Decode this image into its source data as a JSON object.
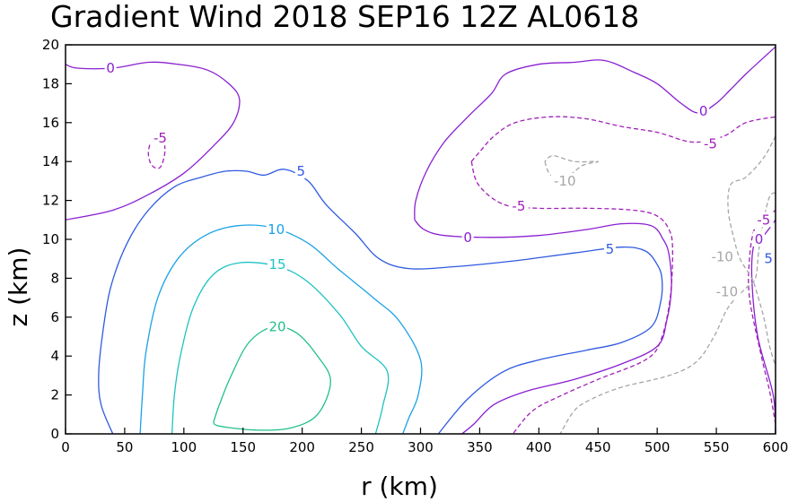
{
  "chart_data": {
    "type": "contour",
    "title": "Gradient Wind 2018 SEP16 12Z  AL0618",
    "xlabel": "r (km)",
    "ylabel": "z (km)",
    "xlim": [
      0,
      600
    ],
    "ylim": [
      0,
      20
    ],
    "xticks": [
      "0",
      "50",
      "100",
      "150",
      "200",
      "250",
      "300",
      "350",
      "400",
      "450",
      "500",
      "550",
      "600"
    ],
    "yticks": [
      "0",
      "2",
      "4",
      "6",
      "8",
      "10",
      "12",
      "14",
      "16",
      "18",
      "20"
    ],
    "grid": false,
    "contours": [
      {
        "level": 20,
        "color": "#21c08b",
        "dash": false,
        "points": [
          [
            125,
            0.6
          ],
          [
            130,
            1.5
          ],
          [
            140,
            3
          ],
          [
            155,
            4.7
          ],
          [
            175,
            5.5
          ],
          [
            195,
            5.2
          ],
          [
            213,
            4
          ],
          [
            224,
            2.7
          ],
          [
            213,
            1
          ],
          [
            190,
            0.3
          ],
          [
            160,
            0.2
          ],
          [
            130,
            0.4
          ],
          [
            125,
            0.6
          ]
        ]
      },
      {
        "level": 15,
        "color": "#1fc2c2",
        "dash": false,
        "points": [
          [
            90,
            0
          ],
          [
            92,
            2
          ],
          [
            97,
            4
          ],
          [
            108,
            6.5
          ],
          [
            125,
            8.2
          ],
          [
            148,
            8.8
          ],
          [
            180,
            8.6
          ],
          [
            205,
            7.8
          ],
          [
            232,
            6.1
          ],
          [
            250,
            4.5
          ],
          [
            272,
            3.2
          ],
          [
            268,
            1.4
          ],
          [
            262,
            0
          ]
        ]
      },
      {
        "level": 10,
        "color": "#1aa2e6",
        "dash": false,
        "points": [
          [
            63,
            0
          ],
          [
            65,
            2
          ],
          [
            68,
            4.2
          ],
          [
            78,
            7
          ],
          [
            95,
            9
          ],
          [
            118,
            10.2
          ],
          [
            145,
            10.7
          ],
          [
            175,
            10.6
          ],
          [
            205,
            9.8
          ],
          [
            230,
            8.5
          ],
          [
            260,
            7
          ],
          [
            282,
            5.8
          ],
          [
            300,
            3.8
          ],
          [
            298,
            2
          ],
          [
            290,
            0.8
          ],
          [
            285,
            0
          ]
        ]
      },
      {
        "level": 5,
        "color": "#2f5ae0",
        "dash": false,
        "points": [
          [
            40,
            0
          ],
          [
            30,
            1.5
          ],
          [
            28,
            3
          ],
          [
            31,
            5
          ],
          [
            38,
            7.5
          ],
          [
            52,
            9.8
          ],
          [
            70,
            11.5
          ],
          [
            92,
            12.7
          ],
          [
            115,
            13.2
          ],
          [
            135,
            13.5
          ],
          [
            153,
            13.5
          ],
          [
            168,
            13.3
          ],
          [
            185,
            13.6
          ],
          [
            205,
            13
          ],
          [
            220,
            11.8
          ],
          [
            245,
            10.3
          ],
          [
            265,
            9
          ],
          [
            290,
            8.5
          ],
          [
            330,
            8.6
          ],
          [
            380,
            8.9
          ],
          [
            430,
            9.3
          ],
          [
            470,
            9.6
          ],
          [
            490,
            9.4
          ],
          [
            500,
            8.7
          ],
          [
            504,
            8
          ],
          [
            503,
            6.8
          ],
          [
            495,
            5.5
          ],
          [
            470,
            4.7
          ],
          [
            440,
            4.3
          ],
          [
            400,
            3.8
          ],
          [
            370,
            3.2
          ],
          [
            340,
            1.8
          ],
          [
            315,
            0
          ]
        ]
      },
      {
        "level": 0,
        "color": "#8a1fd1",
        "dash": false,
        "points": [
          [
            0,
            11
          ],
          [
            40,
            11.5
          ],
          [
            70,
            12.3
          ],
          [
            100,
            13.4
          ],
          [
            125,
            14.8
          ],
          [
            142,
            16
          ],
          [
            147,
            17.2
          ],
          [
            138,
            18
          ],
          [
            120,
            18.7
          ],
          [
            95,
            19
          ],
          [
            70,
            19.1
          ],
          [
            40,
            18.8
          ],
          [
            10,
            18.8
          ],
          [
            0,
            19
          ]
        ]
      },
      {
        "level": 0,
        "color": "#8a1fd1",
        "dash": false,
        "points": [
          [
            295,
            11
          ],
          [
            296,
            12
          ],
          [
            305,
            13.5
          ],
          [
            320,
            15
          ],
          [
            340,
            16.3
          ],
          [
            360,
            17.5
          ],
          [
            372,
            18.5
          ],
          [
            400,
            19
          ],
          [
            430,
            19.1
          ],
          [
            455,
            19.2
          ],
          [
            480,
            18.6
          ],
          [
            500,
            18
          ],
          [
            520,
            17
          ],
          [
            535,
            16.5
          ],
          [
            550,
            17
          ],
          [
            562,
            17.7
          ],
          [
            575,
            18.5
          ],
          [
            600,
            19.9
          ]
        ]
      },
      {
        "level": 0,
        "color": "#8a1fd1",
        "dash": false,
        "points": [
          [
            295,
            11
          ],
          [
            303,
            10.5
          ],
          [
            320,
            10.2
          ],
          [
            360,
            10.1
          ],
          [
            400,
            10.2
          ],
          [
            440,
            10.5
          ],
          [
            470,
            10.8
          ],
          [
            495,
            10.7
          ],
          [
            505,
            10
          ],
          [
            510,
            9.2
          ],
          [
            512,
            7.5
          ],
          [
            508,
            5.8
          ],
          [
            500,
            4.5
          ],
          [
            470,
            3.6
          ],
          [
            430,
            2.8
          ],
          [
            390,
            2.2
          ],
          [
            362,
            1.5
          ],
          [
            345,
            0.5
          ],
          [
            335,
            0
          ]
        ]
      },
      {
        "level": 0,
        "color": "#8a1fd1",
        "dash": false,
        "points": [
          [
            600,
            0
          ],
          [
            598,
            2
          ],
          [
            585,
            5
          ],
          [
            580,
            8
          ],
          [
            582,
            9.8
          ],
          [
            590,
            10.2
          ],
          [
            600,
            11
          ]
        ]
      },
      {
        "level": -5,
        "color": "#a01fb8",
        "dash": true,
        "points": [
          [
            343,
            14
          ],
          [
            350,
            14.5
          ],
          [
            362,
            15.3
          ],
          [
            380,
            16
          ],
          [
            410,
            16.3
          ],
          [
            440,
            16.2
          ],
          [
            470,
            15.8
          ],
          [
            500,
            15.5
          ],
          [
            530,
            15
          ],
          [
            556,
            15.3
          ],
          [
            575,
            16
          ],
          [
            600,
            16.3
          ]
        ]
      },
      {
        "level": -5,
        "color": "#a01fb8",
        "dash": true,
        "points": [
          [
            343,
            14
          ],
          [
            349,
            12.8
          ],
          [
            370,
            11.8
          ],
          [
            400,
            11.6
          ],
          [
            440,
            11.6
          ],
          [
            480,
            11.5
          ],
          [
            500,
            11.2
          ],
          [
            510,
            10.5
          ],
          [
            513,
            9.5
          ],
          [
            511,
            7
          ],
          [
            503,
            4.8
          ],
          [
            490,
            3.8
          ],
          [
            450,
            2.8
          ],
          [
            420,
            2
          ],
          [
            395,
            1.2
          ],
          [
            378,
            0
          ]
        ]
      },
      {
        "level": -5,
        "color": "#a01fb8",
        "dash": true,
        "points": [
          [
            600,
            0.5
          ],
          [
            595,
            2.2
          ],
          [
            588,
            4
          ],
          [
            578,
            7
          ],
          [
            578,
            9
          ],
          [
            582,
            10.5
          ],
          [
            590,
            11
          ],
          [
            600,
            11.5
          ]
        ]
      },
      {
        "level": -5,
        "color": "#a01fb8",
        "dash": true,
        "points": [
          [
            77,
            15.5
          ],
          [
            72,
            15
          ],
          [
            70,
            14.4
          ],
          [
            73,
            13.8
          ],
          [
            80,
            13.7
          ],
          [
            84,
            14.5
          ],
          [
            82,
            15.3
          ],
          [
            77,
            15.5
          ]
        ]
      },
      {
        "level": -10,
        "color": "#a6a6a6",
        "dash": true,
        "points": [
          [
            405,
            14
          ],
          [
            410,
            13.3
          ],
          [
            423,
            13.2
          ],
          [
            437,
            13.8
          ],
          [
            450,
            14
          ],
          [
            430,
            14
          ],
          [
            412,
            14.3
          ],
          [
            405,
            14
          ]
        ]
      },
      {
        "level": -10,
        "color": "#a6a6a6",
        "dash": true,
        "points": [
          [
            600,
            15.3
          ],
          [
            590,
            14.2
          ],
          [
            575,
            13.2
          ],
          [
            562,
            12.8
          ],
          [
            560,
            11.5
          ],
          [
            565,
            10
          ],
          [
            570,
            9
          ],
          [
            580,
            8
          ],
          [
            583,
            7.5
          ],
          [
            590,
            6
          ],
          [
            595,
            4.5
          ],
          [
            600,
            3.5
          ]
        ]
      },
      {
        "level": -10,
        "color": "#a6a6a6",
        "dash": true,
        "points": [
          [
            600,
            12.4
          ],
          [
            595,
            12.2
          ],
          [
            590,
            11
          ],
          [
            586,
            9.5
          ],
          [
            583,
            8
          ],
          [
            575,
            7.5
          ],
          [
            560,
            6.5
          ],
          [
            548,
            5
          ],
          [
            533,
            3.7
          ],
          [
            510,
            3
          ],
          [
            470,
            2.4
          ],
          [
            445,
            1.8
          ],
          [
            430,
            1.2
          ],
          [
            418,
            0
          ]
        ]
      }
    ],
    "contour_labels": [
      {
        "text": "0",
        "x": 38,
        "y": 18.8,
        "color": "#8a1fd1"
      },
      {
        "text": "-5",
        "x": 80,
        "y": 15.2,
        "color": "#a01fb8"
      },
      {
        "text": "5",
        "x": 199,
        "y": 13.5,
        "color": "#2f5ae0"
      },
      {
        "text": "10",
        "x": 178,
        "y": 10.5,
        "color": "#1aa2e6"
      },
      {
        "text": "15",
        "x": 179,
        "y": 8.7,
        "color": "#1fc2c2"
      },
      {
        "text": "20",
        "x": 179,
        "y": 5.5,
        "color": "#21c08b"
      },
      {
        "text": "0",
        "x": 340,
        "y": 10.1,
        "color": "#8a1fd1"
      },
      {
        "text": "-5",
        "x": 383,
        "y": 11.7,
        "color": "#a01fb8"
      },
      {
        "text": "-10",
        "x": 422,
        "y": 13,
        "color": "#a6a6a6"
      },
      {
        "text": "5",
        "x": 460,
        "y": 9.5,
        "color": "#2f5ae0"
      },
      {
        "text": "0",
        "x": 539,
        "y": 16.6,
        "color": "#8a1fd1"
      },
      {
        "text": "-5",
        "x": 545,
        "y": 14.9,
        "color": "#a01fb8"
      },
      {
        "text": "-10",
        "x": 555,
        "y": 9.1,
        "color": "#a6a6a6"
      },
      {
        "text": "-10",
        "x": 559,
        "y": 7.3,
        "color": "#a6a6a6"
      },
      {
        "text": "-5",
        "x": 590,
        "y": 11,
        "color": "#a01fb8"
      },
      {
        "text": "0",
        "x": 586,
        "y": 10,
        "color": "#8a1fd1"
      },
      {
        "text": "5",
        "x": 594,
        "y": 9,
        "color": "#2f5ae0"
      }
    ]
  }
}
